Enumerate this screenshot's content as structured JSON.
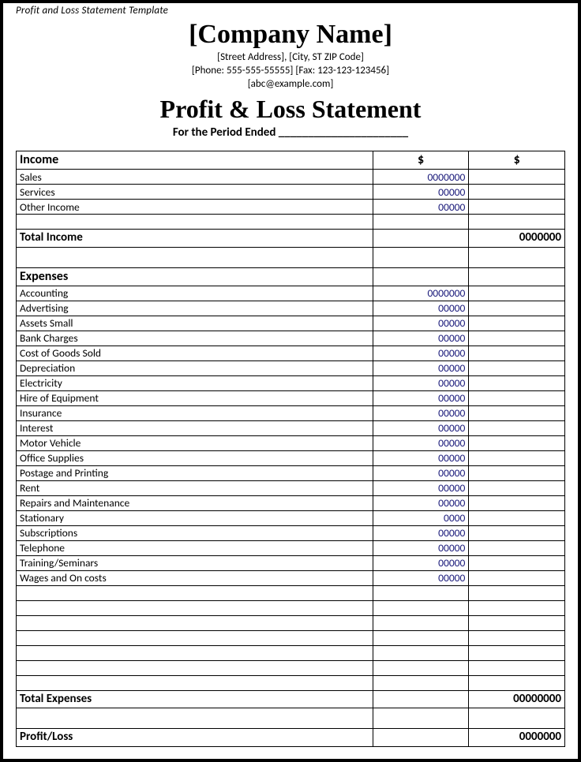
{
  "doc_label": "Profit and Loss Statement Template",
  "header": {
    "company": "[Company Name]",
    "address": "[Street Address], [City, ST ZIP Code]",
    "contact": "[Phone: 555-555-55555] [Fax: 123-123-123456]",
    "email": "[abc@example.com]",
    "title": "Profit & Loss Statement",
    "period": "For the Period Ended ______________________"
  },
  "columns": {
    "currency1": "$",
    "currency2": "$"
  },
  "income": {
    "heading": "Income",
    "rows": [
      {
        "label": "Sales",
        "value": "0000000"
      },
      {
        "label": "Services",
        "value": "00000"
      },
      {
        "label": "Other Income",
        "value": "00000"
      }
    ],
    "total_label": "Total Income",
    "total_value": "0000000"
  },
  "expenses": {
    "heading": "Expenses",
    "rows": [
      {
        "label": "Accounting",
        "value": "0000000"
      },
      {
        "label": "Advertising",
        "value": "00000"
      },
      {
        "label": "Assets Small",
        "value": "00000"
      },
      {
        "label": "Bank Charges",
        "value": "00000"
      },
      {
        "label": "Cost of Goods Sold",
        "value": "00000"
      },
      {
        "label": "Depreciation",
        "value": "00000"
      },
      {
        "label": "Electricity",
        "value": "00000"
      },
      {
        "label": "Hire of Equipment",
        "value": "00000"
      },
      {
        "label": "Insurance",
        "value": "00000"
      },
      {
        "label": "Interest",
        "value": "00000"
      },
      {
        "label": "Motor Vehicle",
        "value": "00000"
      },
      {
        "label": "Office Supplies",
        "value": "00000"
      },
      {
        "label": "Postage and Printing",
        "value": "00000"
      },
      {
        "label": "Rent",
        "value": "00000"
      },
      {
        "label": "Repairs and Maintenance",
        "value": "00000"
      },
      {
        "label": "Stationary",
        "value": "0000"
      },
      {
        "label": "Subscriptions",
        "value": "00000"
      },
      {
        "label": "Telephone",
        "value": "00000"
      },
      {
        "label": "Training/Seminars",
        "value": "00000"
      },
      {
        "label": "Wages and On costs",
        "value": "00000"
      }
    ],
    "blank_rows": 6,
    "total_label": "Total Expenses",
    "total_value": "00000000"
  },
  "profit_loss": {
    "label": "Profit/Loss",
    "value": "0000000"
  },
  "styling": {
    "border_color": "#000000",
    "value_color": "#1a1a7a",
    "background": "#ffffff",
    "font_body": "Calibri",
    "font_heading": "Times New Roman",
    "company_fontsize": 34,
    "title_fontsize": 32,
    "section_fontsize": 16,
    "row_fontsize": 13.5
  }
}
